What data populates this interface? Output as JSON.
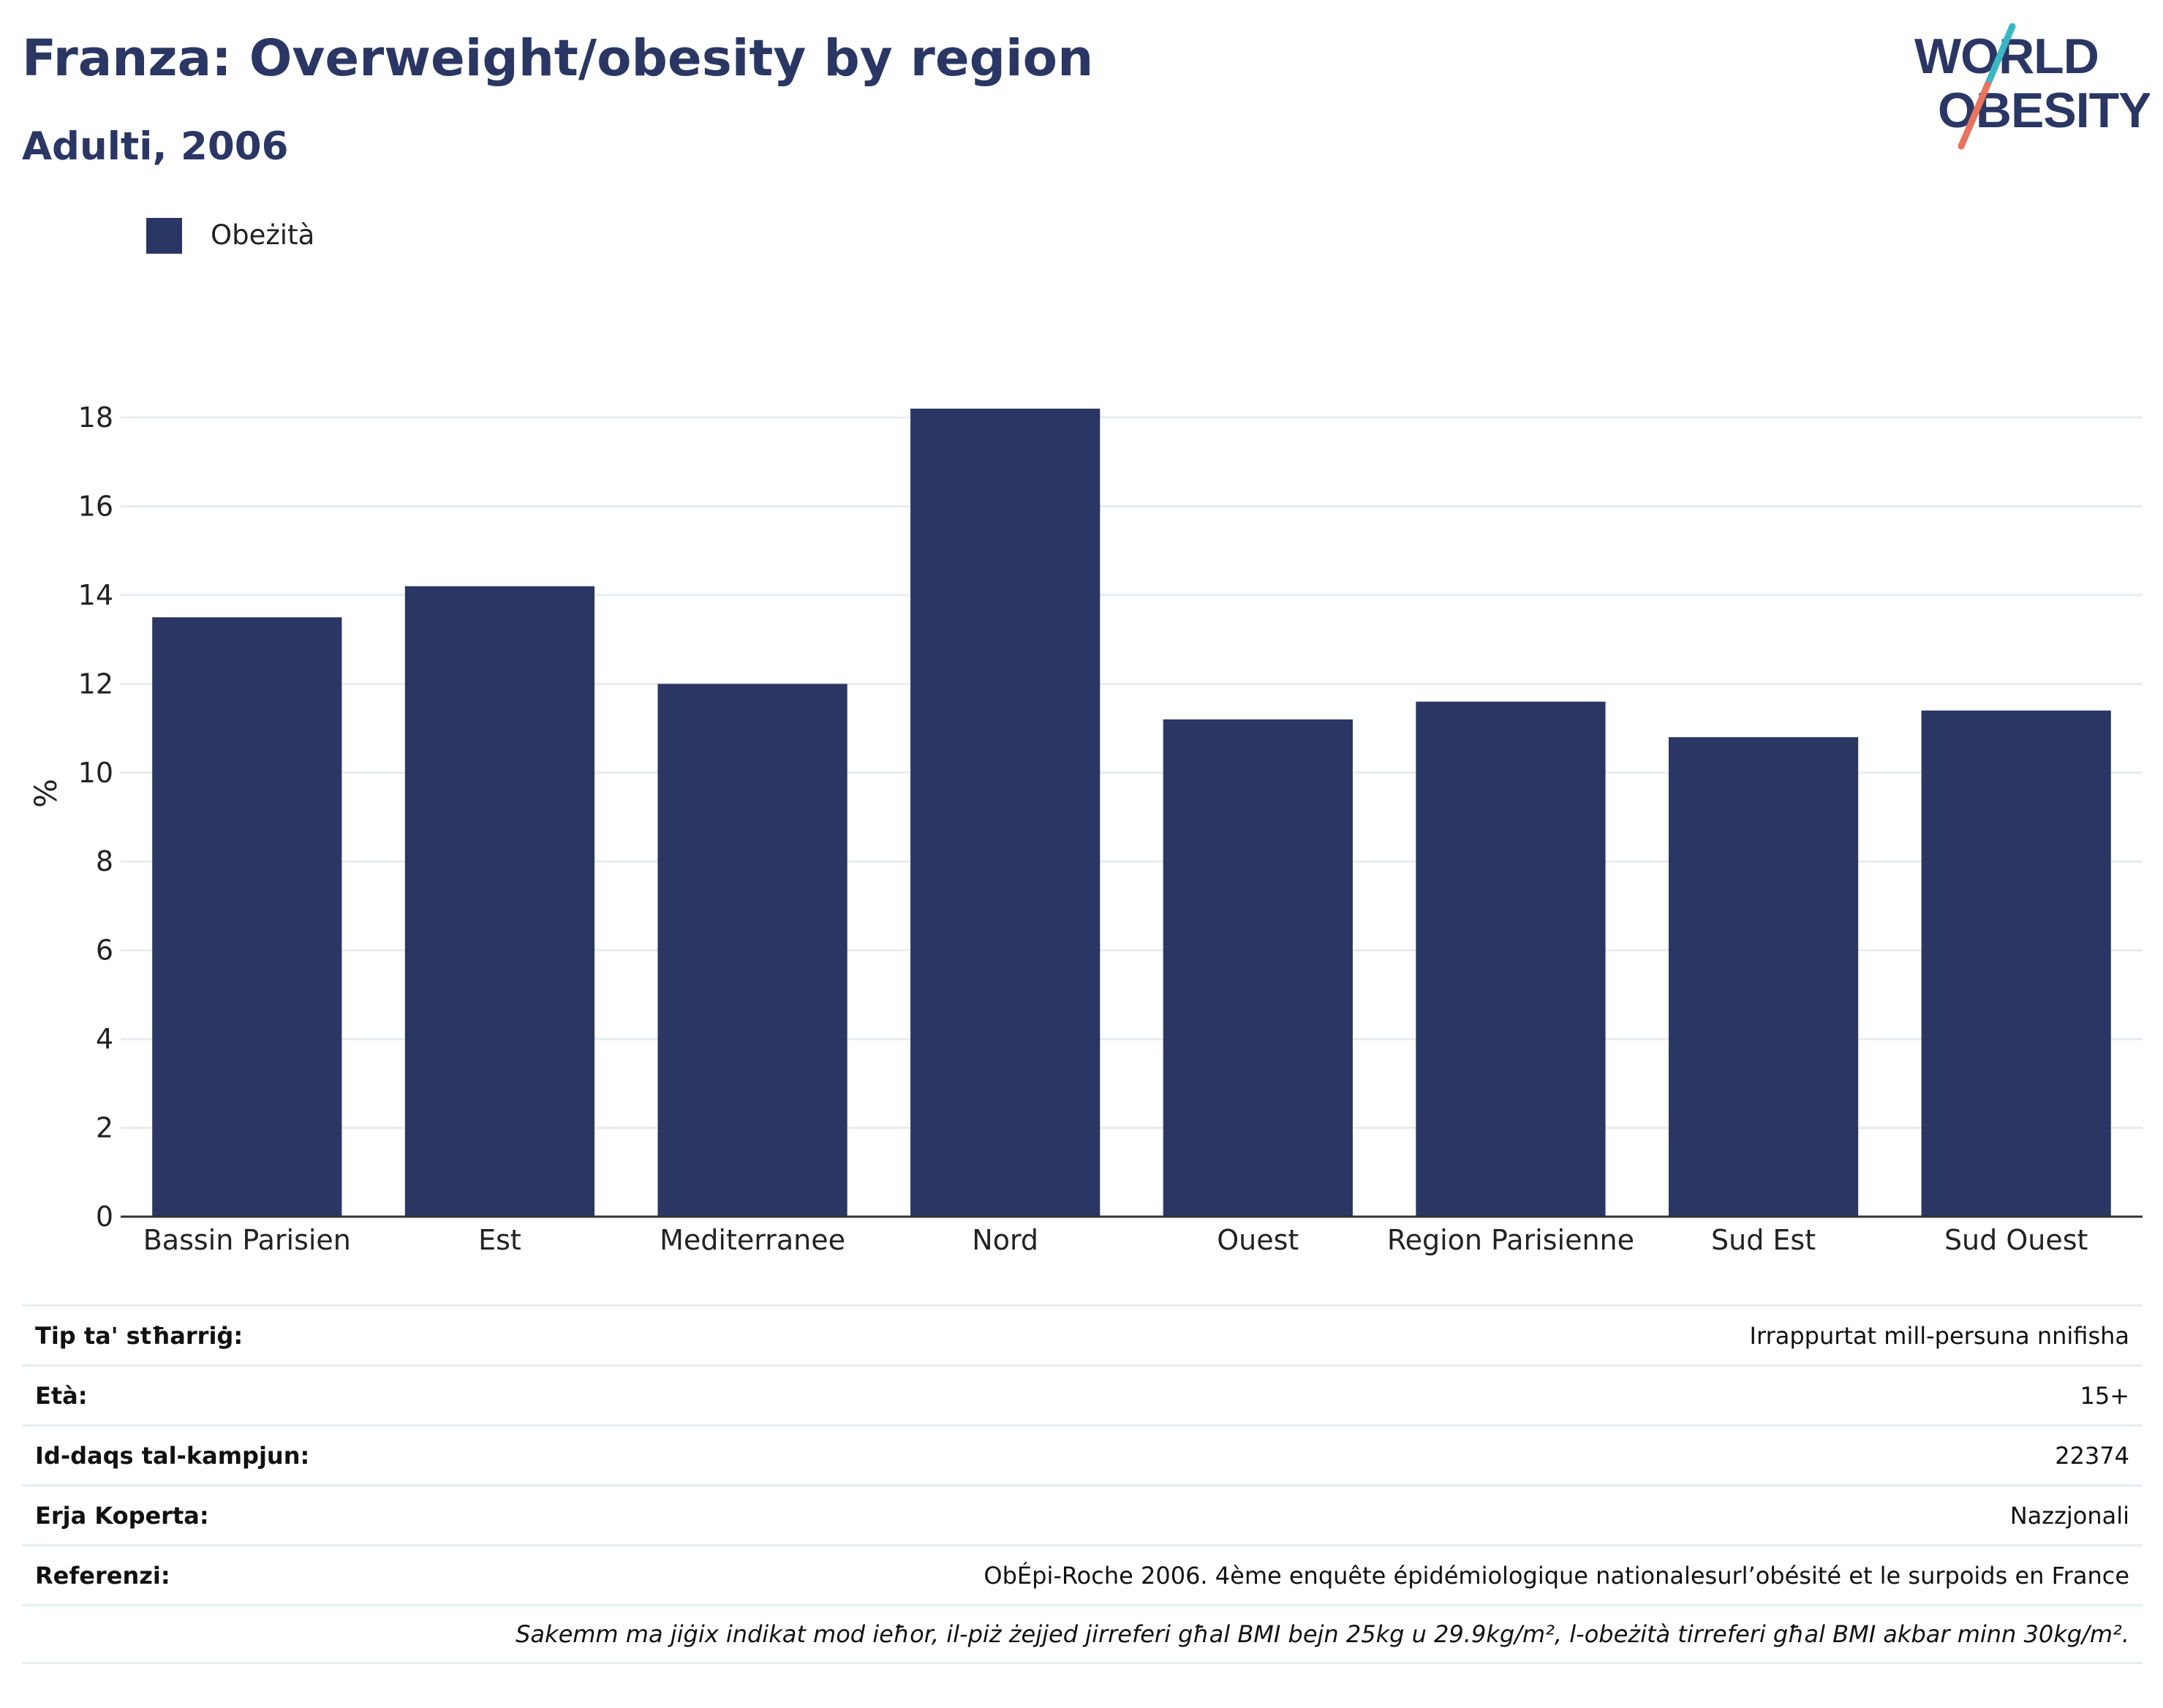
{
  "title": "Franza: Overweight/obesity by region",
  "subtitle": "Adulti, 2006",
  "logo": {
    "line1": "WORLD",
    "line2": "OBESITY"
  },
  "colors": {
    "bar": "#2a3663",
    "title": "#2a3663",
    "grid": "#e9ecef",
    "logo_teal": "#3bb7c4",
    "logo_coral": "#e8735f"
  },
  "chart_data": {
    "type": "bar",
    "categories": [
      "Bassin Parisien",
      "Est",
      "Mediterranee",
      "Nord",
      "Ouest",
      "Region Parisienne",
      "Sud Est",
      "Sud Ouest"
    ],
    "series": [
      {
        "name": "Obeżità",
        "values": [
          13.5,
          14.2,
          12.0,
          18.2,
          11.2,
          11.6,
          10.8,
          11.4
        ]
      }
    ],
    "ylabel": "%",
    "ylim": [
      0,
      18.5
    ],
    "yticks": [
      0,
      2,
      4,
      6,
      8,
      10,
      12,
      14,
      16,
      18
    ],
    "grid": true,
    "legend": "top-left"
  },
  "info": [
    {
      "key": "Tip ta' stħarriġ:",
      "value": "Irrappurtat mill-persuna nnifisha"
    },
    {
      "key": "Età:",
      "value": "15+"
    },
    {
      "key": "Id-daqs tal-kampjun:",
      "value": "22374"
    },
    {
      "key": "Erja Koperta:",
      "value": "Nazzjonali"
    },
    {
      "key": "Referenzi:",
      "value": "ObÉpi-Roche 2006. 4ème enquête épidémiologique nationalesurl’obésité et le surpoids en France"
    }
  ],
  "note": "Sakemm ma jiġix indikat mod ieħor, il-piż żejjed jirreferi għal BMI bejn 25kg u 29.9kg/m², l-obeżità tirreferi għal BMI akbar minn 30kg/m²."
}
